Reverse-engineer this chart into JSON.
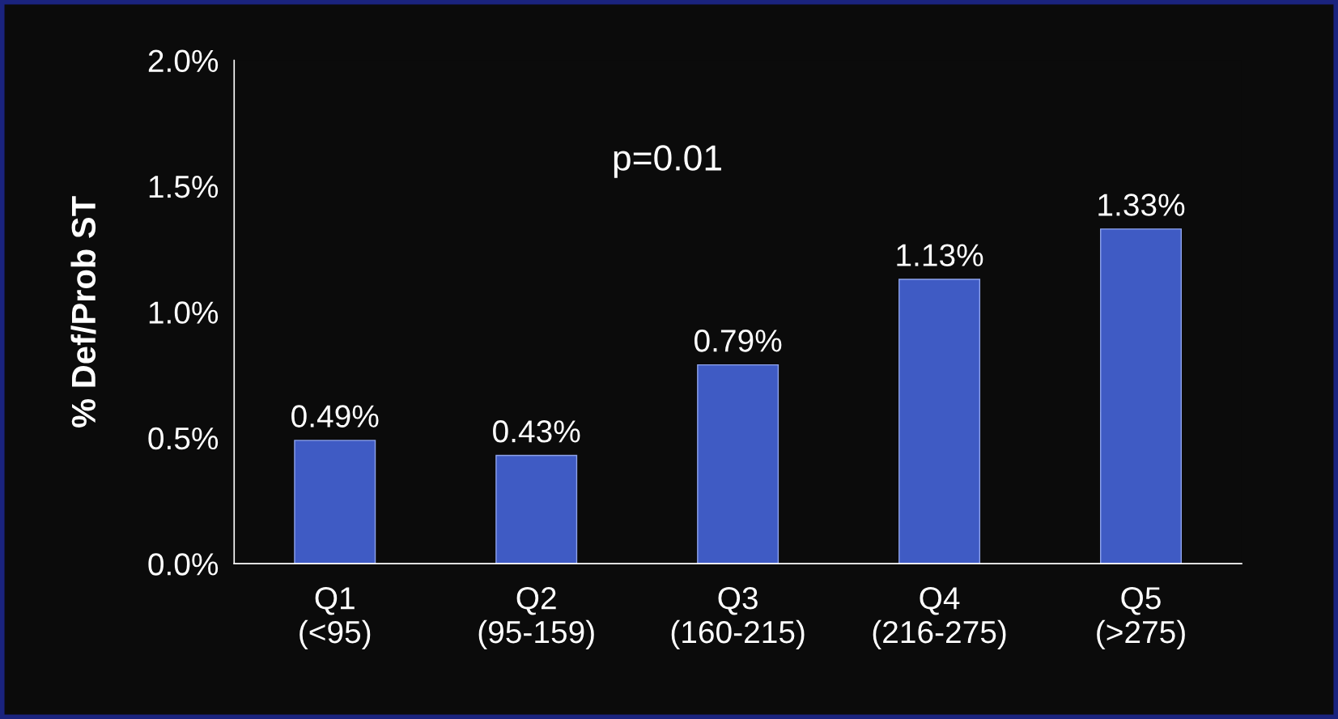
{
  "chart_data": {
    "type": "bar",
    "ylabel": "% Def/Prob ST",
    "categories": [
      "Q1\n(<95)",
      "Q2\n(95-159)",
      "Q3\n(160-215)",
      "Q4\n(216-275)",
      "Q5\n(>275)"
    ],
    "values": [
      0.49,
      0.43,
      0.79,
      1.13,
      1.33
    ],
    "value_labels": [
      "0.49%",
      "0.43%",
      "0.79%",
      "1.13%",
      "1.33%"
    ],
    "color": "#3f5bc4",
    "ylim": [
      0,
      2
    ],
    "yticks": [
      {
        "value": 0,
        "label": "0.0%"
      },
      {
        "value": 0.5,
        "label": "0.5%"
      },
      {
        "value": 1,
        "label": "1.0%"
      },
      {
        "value": 1.5,
        "label": "1.5%"
      },
      {
        "value": 2,
        "label": "2.0%"
      }
    ],
    "annotations": [
      "p=0.01"
    ],
    "grid": false,
    "legend": false
  }
}
